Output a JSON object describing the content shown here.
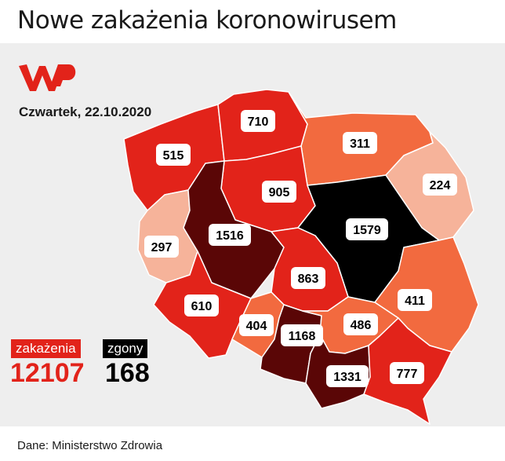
{
  "title": "Nowe zakażenia koronowirusem",
  "date": "Czwartek, 22.10.2020",
  "legend": {
    "infections_label": "zakażenia",
    "infections_value": "12107",
    "deaths_label": "zgony",
    "deaths_value": "168"
  },
  "source": "Dane: Ministerstwo Zdrowia",
  "regions": [
    {
      "id": "zachodniopomorskie",
      "value": "515",
      "color": "#e2231a"
    },
    {
      "id": "pomorskie",
      "value": "710",
      "color": "#e2231a"
    },
    {
      "id": "warminsko-mazurskie",
      "value": "311",
      "color": "#f26a3f"
    },
    {
      "id": "podlaskie",
      "value": "224",
      "color": "#f6b39a"
    },
    {
      "id": "kujawsko-pomorskie",
      "value": "905",
      "color": "#e2231a"
    },
    {
      "id": "lubuskie",
      "value": "297",
      "color": "#f6b39a"
    },
    {
      "id": "wielkopolskie",
      "value": "1516",
      "color": "#5a0606"
    },
    {
      "id": "mazowieckie",
      "value": "1579",
      "color": "#000000"
    },
    {
      "id": "lodzkie",
      "value": "863",
      "color": "#e2231a"
    },
    {
      "id": "dolnoslaskie",
      "value": "610",
      "color": "#e2231a"
    },
    {
      "id": "lubelskie",
      "value": "411",
      "color": "#f26a3f"
    },
    {
      "id": "opolskie",
      "value": "404",
      "color": "#f26a3f"
    },
    {
      "id": "slaskie",
      "value": "1168",
      "color": "#5a0606"
    },
    {
      "id": "swietokrzyskie",
      "value": "486",
      "color": "#f26a3f"
    },
    {
      "id": "malopolskie",
      "value": "1331",
      "color": "#5a0606"
    },
    {
      "id": "podkarpackie",
      "value": "777",
      "color": "#e2231a"
    }
  ]
}
